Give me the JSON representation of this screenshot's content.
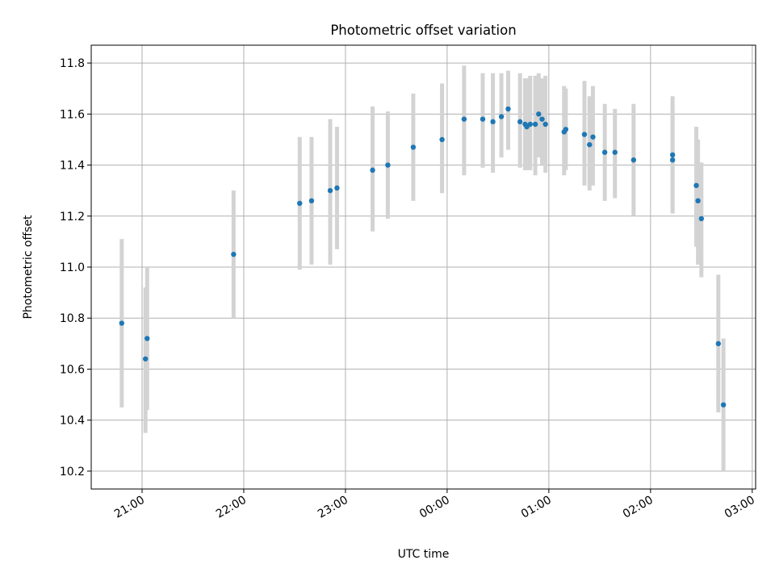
{
  "chart_data": {
    "type": "scatter",
    "title": "Photometric offset variation",
    "xlabel": "UTC time",
    "ylabel": "Photometric offset",
    "x_tick_labels": [
      "21:00",
      "22:00",
      "23:00",
      "00:00",
      "01:00",
      "02:00",
      "03:00"
    ],
    "y_tick_labels": [
      "10.2",
      "10.4",
      "10.6",
      "10.8",
      "11.0",
      "11.2",
      "11.4",
      "11.6",
      "11.8"
    ],
    "x_tick_times": [
      "21:00",
      "22:00",
      "23:00",
      "00:00",
      "01:00",
      "02:00",
      "03:00"
    ],
    "y_ticks": [
      10.2,
      10.4,
      10.6,
      10.8,
      11.0,
      11.2,
      11.4,
      11.6,
      11.8
    ],
    "xlim": [
      "20:30",
      "03:02"
    ],
    "ylim": [
      10.13,
      11.87
    ],
    "grid": true,
    "colors": {
      "points": "#1f77b4",
      "error_bars": "#d3d3d3",
      "grid": "#b0b0b0"
    },
    "points": [
      {
        "time": "20:48",
        "y": 10.78,
        "err_low": 10.45,
        "err_high": 11.11
      },
      {
        "time": "21:02",
        "y": 10.64,
        "err_low": 10.35,
        "err_high": 10.92
      },
      {
        "time": "21:03",
        "y": 10.72,
        "err_low": 10.44,
        "err_high": 11.0
      },
      {
        "time": "21:54",
        "y": 11.05,
        "err_low": 10.8,
        "err_high": 11.3
      },
      {
        "time": "22:33",
        "y": 11.25,
        "err_low": 10.99,
        "err_high": 11.51
      },
      {
        "time": "22:40",
        "y": 11.26,
        "err_low": 11.01,
        "err_high": 11.51
      },
      {
        "time": "22:51",
        "y": 11.3,
        "err_low": 11.01,
        "err_high": 11.58
      },
      {
        "time": "22:55",
        "y": 11.31,
        "err_low": 11.07,
        "err_high": 11.55
      },
      {
        "time": "23:16",
        "y": 11.38,
        "err_low": 11.14,
        "err_high": 11.63
      },
      {
        "time": "23:25",
        "y": 11.4,
        "err_low": 11.19,
        "err_high": 11.61
      },
      {
        "time": "23:40",
        "y": 11.47,
        "err_low": 11.26,
        "err_high": 11.68
      },
      {
        "time": "23:57",
        "y": 11.5,
        "err_low": 11.29,
        "err_high": 11.72
      },
      {
        "time": "00:10",
        "y": 11.58,
        "err_low": 11.36,
        "err_high": 11.79
      },
      {
        "time": "00:21",
        "y": 11.58,
        "err_low": 11.39,
        "err_high": 11.76
      },
      {
        "time": "00:27",
        "y": 11.57,
        "err_low": 11.37,
        "err_high": 11.76
      },
      {
        "time": "00:32",
        "y": 11.59,
        "err_low": 11.43,
        "err_high": 11.76
      },
      {
        "time": "00:36",
        "y": 11.62,
        "err_low": 11.46,
        "err_high": 11.77
      },
      {
        "time": "00:43",
        "y": 11.57,
        "err_low": 11.39,
        "err_high": 11.76
      },
      {
        "time": "00:46",
        "y": 11.56,
        "err_low": 11.38,
        "err_high": 11.74
      },
      {
        "time": "00:47",
        "y": 11.55,
        "err_low": 11.38,
        "err_high": 11.74
      },
      {
        "time": "00:49",
        "y": 11.56,
        "err_low": 11.38,
        "err_high": 11.75
      },
      {
        "time": "00:52",
        "y": 11.56,
        "err_low": 11.36,
        "err_high": 11.75
      },
      {
        "time": "00:54",
        "y": 11.6,
        "err_low": 11.43,
        "err_high": 11.76
      },
      {
        "time": "00:56",
        "y": 11.58,
        "err_low": 11.4,
        "err_high": 11.74
      },
      {
        "time": "00:58",
        "y": 11.56,
        "err_low": 11.37,
        "err_high": 11.75
      },
      {
        "time": "01:09",
        "y": 11.53,
        "err_low": 11.36,
        "err_high": 11.71
      },
      {
        "time": "01:10",
        "y": 11.54,
        "err_low": 11.38,
        "err_high": 11.7
      },
      {
        "time": "01:21",
        "y": 11.52,
        "err_low": 11.32,
        "err_high": 11.73
      },
      {
        "time": "01:24",
        "y": 11.48,
        "err_low": 11.3,
        "err_high": 11.67
      },
      {
        "time": "01:26",
        "y": 11.51,
        "err_low": 11.32,
        "err_high": 11.71
      },
      {
        "time": "01:33",
        "y": 11.45,
        "err_low": 11.26,
        "err_high": 11.64
      },
      {
        "time": "01:39",
        "y": 11.45,
        "err_low": 11.27,
        "err_high": 11.62
      },
      {
        "time": "01:50",
        "y": 11.42,
        "err_low": 11.2,
        "err_high": 11.64
      },
      {
        "time": "02:13",
        "y": 11.44,
        "err_low": 11.22,
        "err_high": 11.67
      },
      {
        "time": "02:13",
        "y": 11.42,
        "err_low": 11.21,
        "err_high": 11.63
      },
      {
        "time": "02:27",
        "y": 11.32,
        "err_low": 11.08,
        "err_high": 11.55
      },
      {
        "time": "02:28",
        "y": 11.26,
        "err_low": 11.01,
        "err_high": 11.5
      },
      {
        "time": "02:30",
        "y": 11.19,
        "err_low": 10.96,
        "err_high": 11.41
      },
      {
        "time": "02:40",
        "y": 10.7,
        "err_low": 10.43,
        "err_high": 10.97
      },
      {
        "time": "02:43",
        "y": 10.46,
        "err_low": 10.2,
        "err_high": 10.72
      }
    ]
  }
}
